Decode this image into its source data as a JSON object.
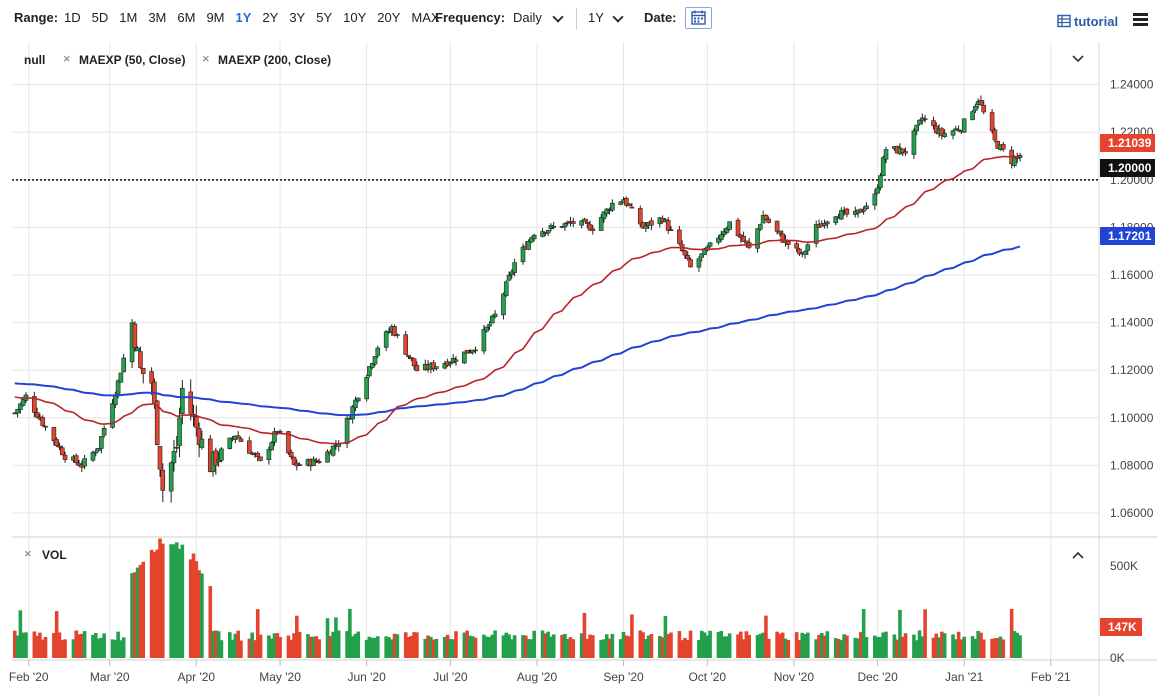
{
  "toolbar": {
    "range_label": "Range:",
    "ranges": [
      "1D",
      "5D",
      "1M",
      "3M",
      "6M",
      "9M",
      "1Y",
      "2Y",
      "3Y",
      "5Y",
      "10Y",
      "20Y",
      "MAX"
    ],
    "active_range": "1Y",
    "frequency_label": "Frequency:",
    "frequency_value": "Daily",
    "period_value": "1Y",
    "date_label": "Date:",
    "tutorial_label": "tutorial"
  },
  "legend": {
    "symbol": "null",
    "ma50": "MAEXP (50, Close)",
    "ma200": "MAEXP (200, Close)",
    "volume": "VOL"
  },
  "colors": {
    "up": "#22a04b",
    "down": "#e4442d",
    "ma50": "#b8242b",
    "ma200": "#2143d6",
    "price_tag": "#e4442d",
    "ma200_tag": "#2143d6",
    "level_tag": "#111111"
  },
  "chart_data": {
    "type": "candlestick",
    "y_ticks": [
      "1.24000",
      "1.22000",
      "1.20000",
      "1.18000",
      "1.16000",
      "1.14000",
      "1.12000",
      "1.10000",
      "1.08000",
      "1.06000"
    ],
    "ylim": [
      1.052,
      1.247
    ],
    "x_ticks": [
      "Feb '20",
      "Mar '20",
      "Apr '20",
      "May '20",
      "Jun '20",
      "Jul '20",
      "Aug '20",
      "Sep '20",
      "Oct '20",
      "Nov '20",
      "Dec '20",
      "Jan '21",
      "Feb '21"
    ],
    "close_anchors": [
      [
        "2020-01-27",
        1.102
      ],
      [
        "2020-01-31",
        1.109
      ],
      [
        "2020-02-07",
        1.096
      ],
      [
        "2020-02-14",
        1.084
      ],
      [
        "2020-02-20",
        1.08
      ],
      [
        "2020-02-26",
        1.088
      ],
      [
        "2020-03-04",
        1.115
      ],
      [
        "2020-03-09",
        1.14
      ],
      [
        "2020-03-12",
        1.12
      ],
      [
        "2020-03-16",
        1.115
      ],
      [
        "2020-03-20",
        1.07
      ],
      [
        "2020-03-25",
        1.088
      ],
      [
        "2020-03-27",
        1.112
      ],
      [
        "2020-04-01",
        1.096
      ],
      [
        "2020-04-06",
        1.08
      ],
      [
        "2020-04-15",
        1.093
      ],
      [
        "2020-04-24",
        1.081
      ],
      [
        "2020-04-30",
        1.095
      ],
      [
        "2020-05-06",
        1.08
      ],
      [
        "2020-05-15",
        1.082
      ],
      [
        "2020-05-22",
        1.09
      ],
      [
        "2020-05-29",
        1.11
      ],
      [
        "2020-06-05",
        1.13
      ],
      [
        "2020-06-10",
        1.138
      ],
      [
        "2020-06-19",
        1.12
      ],
      [
        "2020-06-26",
        1.122
      ],
      [
        "2020-07-03",
        1.125
      ],
      [
        "2020-07-10",
        1.13
      ],
      [
        "2020-07-17",
        1.143
      ],
      [
        "2020-07-24",
        1.165
      ],
      [
        "2020-07-31",
        1.178
      ],
      [
        "2020-08-07",
        1.18
      ],
      [
        "2020-08-14",
        1.182
      ],
      [
        "2020-08-21",
        1.18
      ],
      [
        "2020-08-28",
        1.19
      ],
      [
        "2020-09-01",
        1.192
      ],
      [
        "2020-09-08",
        1.18
      ],
      [
        "2020-09-15",
        1.184
      ],
      [
        "2020-09-22",
        1.17
      ],
      [
        "2020-09-25",
        1.163
      ],
      [
        "2020-10-02",
        1.172
      ],
      [
        "2020-10-09",
        1.182
      ],
      [
        "2020-10-16",
        1.171
      ],
      [
        "2020-10-21",
        1.185
      ],
      [
        "2020-10-28",
        1.175
      ],
      [
        "2020-11-04",
        1.168
      ],
      [
        "2020-11-09",
        1.18
      ],
      [
        "2020-11-16",
        1.186
      ],
      [
        "2020-11-23",
        1.185
      ],
      [
        "2020-11-30",
        1.193
      ],
      [
        "2020-12-04",
        1.213
      ],
      [
        "2020-12-11",
        1.212
      ],
      [
        "2020-12-17",
        1.226
      ],
      [
        "2020-12-24",
        1.219
      ],
      [
        "2020-12-31",
        1.222
      ],
      [
        "2021-01-06",
        1.234
      ],
      [
        "2021-01-12",
        1.216
      ],
      [
        "2021-01-18",
        1.208
      ],
      [
        "2021-01-21",
        1.2104
      ]
    ],
    "series": [
      {
        "name": "MAEXP (50, Close)",
        "last": 1.207
      },
      {
        "name": "MAEXP (200, Close)",
        "last": 1.17201
      }
    ],
    "last_price": "1.21039",
    "ma200_value": "1.17201",
    "reference_level": "1.20000",
    "volume_ticks": [
      "500K",
      "0K"
    ],
    "volume_last": "147K"
  }
}
